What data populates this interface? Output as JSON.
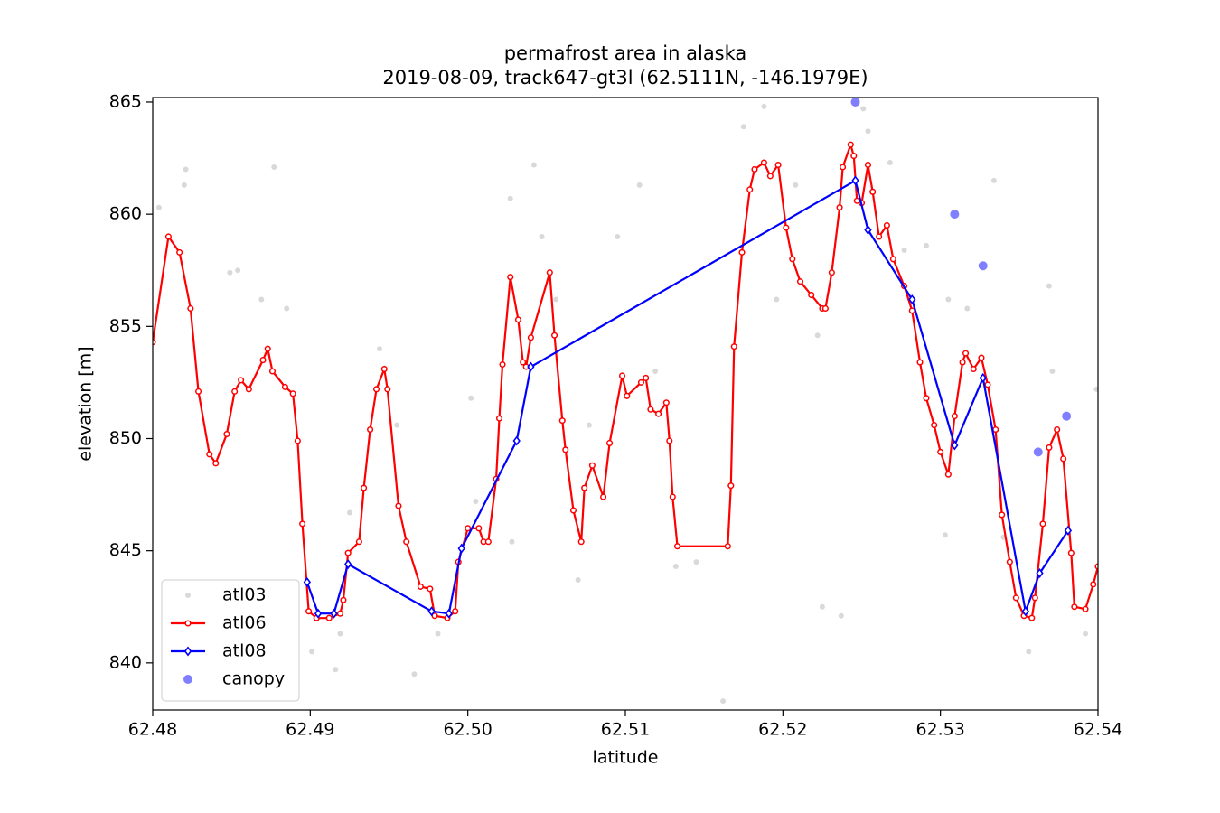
{
  "chart_data": {
    "type": "line",
    "title": "permafrost area in alaska",
    "subtitle": "2019-08-09, track647-gt3l (62.5111N, -146.1979E)",
    "xlabel": "latitude",
    "ylabel": "elevation [m]",
    "xlim": [
      62.48,
      62.54
    ],
    "ylim": [
      837.9,
      865.2
    ],
    "xticks": [
      62.48,
      62.49,
      {
        "value": 62.5,
        "label": "62.50"
      },
      62.51,
      62.52,
      62.53,
      62.54
    ],
    "yticks": [
      840,
      845,
      850,
      855,
      860,
      865
    ],
    "legend": "lower left",
    "series": [
      {
        "name": "atl03",
        "type": "scatter",
        "color": "black",
        "alpha": 0.15,
        "x": [
          62.4804,
          62.482,
          62.4821,
          62.4849,
          62.4854,
          62.4869,
          62.4877,
          62.4885,
          62.4901,
          62.4916,
          62.4919,
          62.4925,
          62.4944,
          62.4955,
          62.4966,
          62.4981,
          62.5002,
          62.5005,
          62.5028,
          62.5027,
          62.5042,
          62.5047,
          62.5056,
          62.507,
          62.5077,
          62.5095,
          62.5109,
          62.5119,
          62.5132,
          62.5145,
          62.5162,
          62.5175,
          62.5188,
          62.5196,
          62.5208,
          62.5222,
          62.5225,
          62.5237,
          62.5251,
          62.5254,
          62.5268,
          62.5277,
          62.5291,
          62.5303,
          62.5305,
          62.5317,
          62.5334,
          62.534,
          62.5356,
          62.5369,
          62.5371,
          62.5392,
          62.5399
        ],
        "values": [
          860.3,
          861.3,
          862.0,
          857.4,
          857.5,
          856.2,
          862.1,
          855.8,
          840.5,
          839.7,
          841.3,
          846.7,
          854.0,
          850.6,
          839.5,
          841.3,
          851.8,
          847.2,
          845.4,
          860.7,
          862.2,
          859.0,
          856.2,
          843.7,
          850.6,
          859.0,
          861.3,
          853.0,
          844.3,
          844.5,
          838.3,
          863.9,
          864.8,
          856.2,
          861.3,
          854.6,
          842.5,
          842.1,
          864.7,
          863.7,
          862.3,
          858.4,
          858.6,
          845.7,
          856.2,
          855.8,
          861.5,
          845.6,
          840.5,
          856.8,
          853.0,
          841.3,
          852.2
        ]
      },
      {
        "name": "atl06",
        "type": "line",
        "marker": "circle",
        "color": "red",
        "x": [
          62.48,
          62.481,
          62.4817,
          62.4824,
          62.4829,
          62.4836,
          62.484,
          62.4847,
          62.4852,
          62.4856,
          62.4861,
          62.487,
          62.4873,
          62.4876,
          62.4884,
          62.4889,
          62.4892,
          62.4895,
          62.4899,
          62.4904,
          62.4912,
          62.4919,
          62.4921,
          62.4924,
          62.4931,
          62.4934,
          62.4938,
          62.4942,
          62.4947,
          62.4949,
          62.4956,
          62.4961,
          62.497,
          62.4976,
          62.4979,
          62.4987,
          62.4992,
          62.4994,
          62.5,
          62.5007,
          62.501,
          62.5013,
          62.5018,
          62.502,
          62.5022,
          62.5027,
          62.5032,
          62.5035,
          62.5037,
          62.504,
          62.5052,
          62.5055,
          62.506,
          62.5062,
          62.5067,
          62.5072,
          62.5074,
          62.5079,
          62.5086,
          62.509,
          62.5098,
          62.5101,
          62.511,
          62.5113,
          62.5116,
          62.5121,
          62.5126,
          62.5128,
          62.513,
          62.5133,
          62.5165,
          62.5167,
          62.5169,
          62.5174,
          62.5179,
          62.5182,
          62.5188,
          62.5192,
          62.5197,
          62.5202,
          62.5206,
          62.5211,
          62.5218,
          62.5225,
          62.5227,
          62.5231,
          62.5236,
          62.5238,
          62.5243,
          62.5245,
          62.5247,
          62.525,
          62.5254,
          62.5257,
          62.5261,
          62.5266,
          62.527,
          62.5277,
          62.5282,
          62.5287,
          62.5291,
          62.5296,
          62.53,
          62.5305,
          62.5309,
          62.5314,
          62.5316,
          62.5321,
          62.5326,
          62.533,
          62.5335,
          62.5339,
          62.5344,
          62.5348,
          62.5353,
          62.5358,
          62.536,
          62.5365,
          62.5369,
          62.5374,
          62.5378,
          62.5383,
          62.5385,
          62.5392,
          62.5397,
          62.54
        ],
        "values": [
          854.3,
          859.0,
          858.3,
          855.8,
          852.1,
          849.3,
          848.9,
          850.2,
          852.1,
          852.6,
          852.2,
          853.5,
          854.0,
          853.0,
          852.3,
          852.0,
          849.9,
          846.2,
          842.3,
          842.0,
          842.0,
          842.2,
          842.8,
          844.9,
          845.4,
          847.8,
          850.4,
          852.2,
          853.1,
          852.2,
          847.0,
          845.4,
          843.4,
          843.3,
          842.1,
          842.0,
          842.3,
          844.5,
          846.0,
          846.0,
          845.4,
          845.4,
          848.2,
          850.9,
          853.3,
          857.2,
          855.3,
          853.4,
          853.2,
          854.5,
          857.4,
          854.6,
          850.8,
          849.5,
          846.8,
          845.4,
          847.8,
          848.8,
          847.4,
          849.8,
          852.8,
          851.9,
          852.5,
          852.7,
          851.3,
          851.1,
          851.6,
          849.9,
          847.4,
          845.2,
          845.2,
          847.9,
          854.1,
          858.3,
          861.1,
          862.0,
          862.3,
          861.7,
          862.2,
          859.4,
          858.0,
          857.0,
          856.4,
          855.8,
          855.8,
          857.4,
          860.3,
          862.1,
          863.1,
          862.6,
          860.6,
          860.5,
          862.2,
          861.0,
          859.0,
          859.5,
          858.0,
          856.8,
          855.7,
          853.4,
          851.8,
          850.6,
          849.4,
          848.4,
          851.0,
          853.4,
          853.8,
          853.1,
          853.6,
          852.4,
          850.4,
          846.6,
          844.5,
          842.9,
          842.1,
          842.0,
          842.9,
          846.2,
          849.6,
          850.4,
          849.1,
          844.9,
          842.5,
          842.4,
          843.5,
          844.3
        ]
      },
      {
        "name": "atl08",
        "type": "line",
        "marker": "diamond",
        "color": "blue",
        "x": [
          62.4898,
          62.4905,
          62.4915,
          62.4924,
          62.4977,
          62.4988,
          62.4996,
          62.5031,
          62.504,
          62.5246,
          62.5254,
          62.5282,
          62.5309,
          62.5327,
          62.5354,
          62.5363,
          62.5381
        ],
        "values": [
          843.6,
          842.2,
          842.2,
          844.4,
          842.3,
          842.2,
          845.1,
          849.9,
          853.2,
          861.5,
          859.3,
          856.2,
          849.7,
          852.7,
          842.3,
          844.0,
          845.9
        ]
      },
      {
        "name": "canopy",
        "type": "scatter",
        "color": "blue",
        "alpha": 0.5,
        "x": [
          62.5246,
          62.5309,
          62.5327,
          62.5362,
          62.538
        ],
        "values": [
          865.0,
          860.0,
          857.7,
          849.4,
          851.0
        ]
      }
    ]
  }
}
